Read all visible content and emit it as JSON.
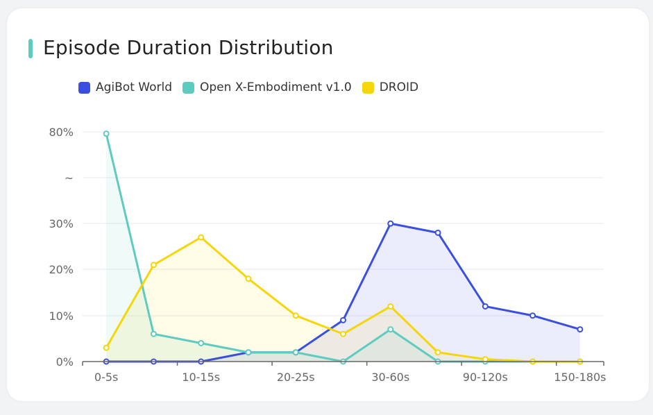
{
  "title": "Episode Duration Distribution",
  "colors": {
    "accent": "#5ecbc1",
    "AgiBot World": "#3a4fe0",
    "Open X-Embodiment v1.0": "#5ecbc1",
    "DROID": "#f5d60a"
  },
  "chart_data": {
    "type": "line",
    "title": "Episode Duration Distribution",
    "x_tick_labels": [
      "0-5s",
      "",
      "10-15s",
      "",
      "20-25s",
      "",
      "30-60s",
      "",
      "90-120s",
      "",
      "150-180s"
    ],
    "y_tick_labels": [
      "0%",
      "10%",
      "20%",
      "30%",
      "~",
      "80%"
    ],
    "y_axis": "broken axis: linear 0-30%, break (~), then 80%",
    "ylim": [
      0,
      80
    ],
    "grid": true,
    "area_fill": true,
    "legend_position": "top-left",
    "series": [
      {
        "name": "AgiBot World",
        "color": "#3a4fe0",
        "values": [
          0,
          0,
          0,
          2,
          2,
          9,
          30,
          28,
          12,
          10,
          7
        ]
      },
      {
        "name": "Open X-Embodiment v1.0",
        "color": "#5ecbc1",
        "values": [
          79,
          6,
          4,
          2,
          2,
          0,
          7,
          0,
          0,
          0,
          0
        ]
      },
      {
        "name": "DROID",
        "color": "#f5d60a",
        "values": [
          3,
          21,
          27,
          18,
          10,
          6,
          12,
          2,
          0.5,
          0,
          0
        ]
      }
    ]
  }
}
